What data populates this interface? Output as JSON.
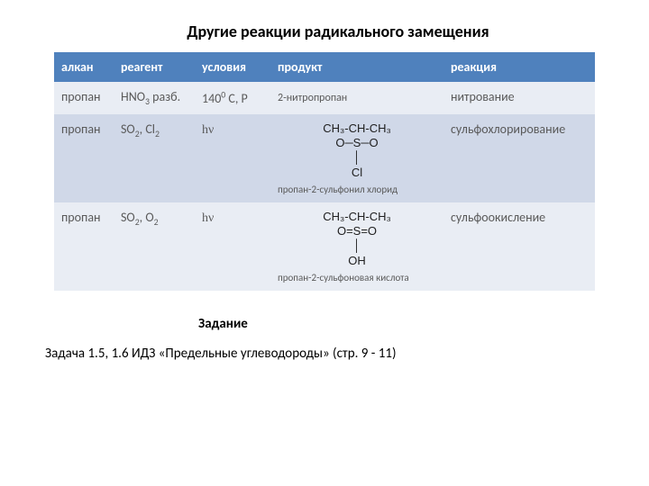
{
  "title": "Другие реакции радикального замещения",
  "table": {
    "headers": [
      "алкан",
      "реагент",
      "условия",
      "продукт",
      "реакция"
    ],
    "rows": [
      {
        "alkane": "пропан",
        "reagent_html": "HNO<sub>3</sub> разб.",
        "conditions_html": "140<sup>0</sup> С, Р",
        "product_text": "2-нитропропан",
        "product_caption": "",
        "reaction": "нитрование",
        "band": "light",
        "product_type": "text"
      },
      {
        "alkane": "пропан",
        "reagent_html": "SO<sub>2</sub>, Cl<sub>2</sub>",
        "conditions_html": "h&nu;",
        "product_text": "",
        "product_caption": "пропан-2-сульфонил хлорид",
        "reaction": "сульфохлорирование",
        "band": "mid",
        "product_type": "formula1"
      },
      {
        "alkane": "пропан",
        "reagent_html": "SO<sub>2</sub>, O<sub>2</sub>",
        "conditions_html": "h&nu;",
        "product_text": "",
        "product_caption": "пропан-2-сульфоновая кислота",
        "reaction": "сульфоокисление",
        "band": "light",
        "product_type": "formula2"
      }
    ]
  },
  "formula1": {
    "line1": "CH₃-CH-CH₃",
    "line2_left": "O",
    "line2_mid": "S",
    "line2_right": "O",
    "line3": "Cl"
  },
  "formula2": {
    "line1": "CH₃-CH-CH₃",
    "line2_left": "O",
    "line2_mid": "S",
    "line2_right": "O",
    "line3": "OH"
  },
  "section_label": "Задание",
  "task_text": "Задача 1.5, 1.6  ИДЗ «Предельные углеводороды» (стр. 9 - 11)",
  "colors": {
    "header_bg": "#4f81bd",
    "header_fg": "#ffffff",
    "band_light": "#e9edf4",
    "band_mid": "#d0d8e8",
    "cell_fg": "#5a5a5a"
  }
}
